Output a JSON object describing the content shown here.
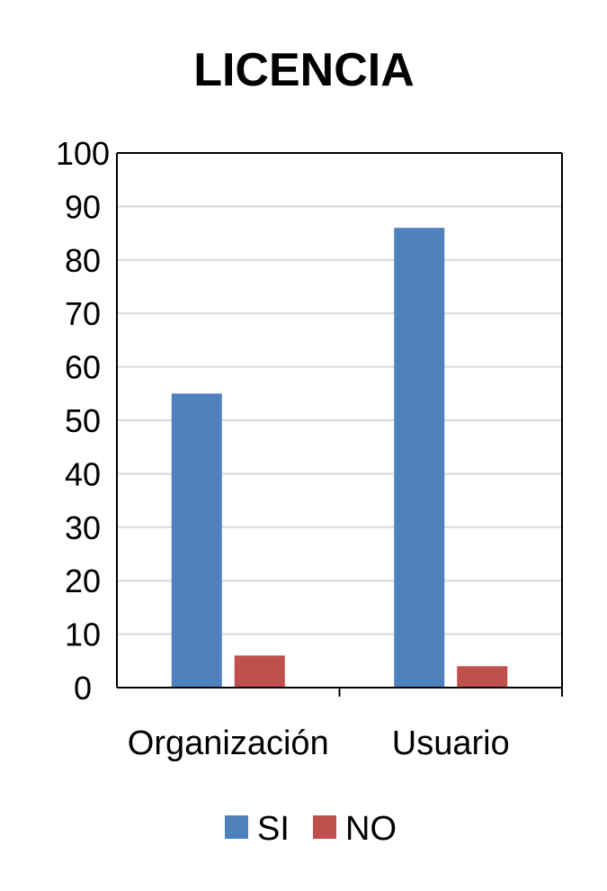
{
  "chart_data": {
    "type": "bar",
    "title": "LICENCIA",
    "xlabel": "",
    "ylabel": "",
    "categories": [
      "Organización",
      "Usuario"
    ],
    "series": [
      {
        "name": "SI",
        "values": [
          55,
          86
        ],
        "color": "#4f81bd"
      },
      {
        "name": "NO",
        "values": [
          6,
          4
        ],
        "color": "#c0504d"
      }
    ],
    "ylim": [
      0,
      100
    ],
    "yticks": [
      0,
      10,
      20,
      30,
      40,
      50,
      60,
      70,
      80,
      90,
      100
    ],
    "grid": true,
    "legend_position": "bottom"
  }
}
